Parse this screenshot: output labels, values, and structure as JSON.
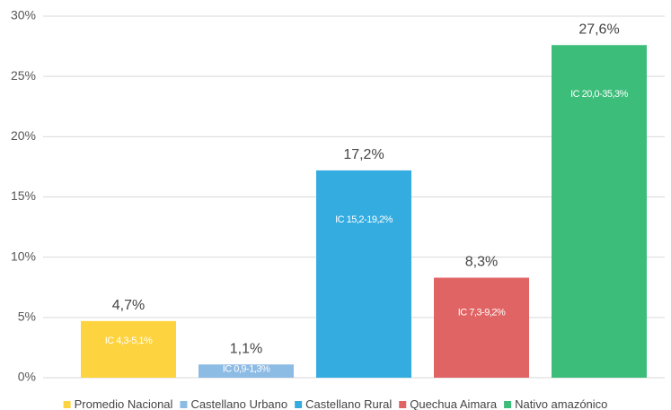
{
  "chart_data": {
    "type": "bar",
    "categories": [
      null
    ],
    "series": [
      {
        "name": "Promedio Nacional",
        "color": "#fdd33f",
        "values": [
          4.7
        ],
        "value_labels": [
          "4,7%"
        ],
        "annotation": "IC 4,3-5,1%"
      },
      {
        "name": "Castellano Urbano",
        "color": "#8cbbe4",
        "values": [
          1.1
        ],
        "value_labels": [
          "1,1%"
        ],
        "annotation": "IC 0,9-1,3%"
      },
      {
        "name": "Castellano Rural",
        "color": "#35ace0",
        "values": [
          17.2
        ],
        "value_labels": [
          "17,2%"
        ],
        "annotation": "IC 15,2-19,2%"
      },
      {
        "name": "Quechua Aimara",
        "color": "#e06464",
        "values": [
          8.3
        ],
        "value_labels": [
          "8,3%"
        ],
        "annotation": "IC 7,3-9,2%"
      },
      {
        "name": "Nativo amazónico",
        "color": "#3dbd7a",
        "values": [
          27.6
        ],
        "value_labels": [
          "27,6%"
        ],
        "annotation": "IC 20,0-35,3%"
      }
    ],
    "ylim": [
      0,
      30
    ],
    "yticks": [
      {
        "value": 0,
        "label": "0%"
      },
      {
        "value": 5,
        "label": "5%"
      },
      {
        "value": 10,
        "label": "10%"
      },
      {
        "value": 15,
        "label": "15%"
      },
      {
        "value": 20,
        "label": "20%"
      },
      {
        "value": 25,
        "label": "25%"
      },
      {
        "value": 30,
        "label": "30%"
      }
    ],
    "grid": true
  }
}
